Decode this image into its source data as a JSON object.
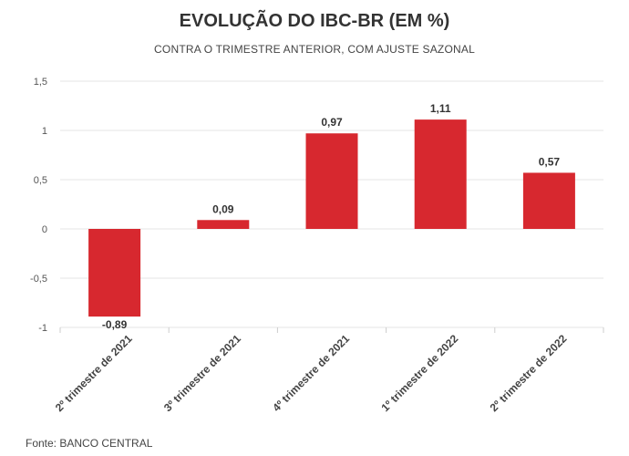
{
  "title": "EVOLUÇÃO DO IBC-BR (EM %)",
  "subtitle": "CONTRA O TRIMESTRE ANTERIOR, COM AJUSTE SAZONAL",
  "source": "Fonte: BANCO CENTRAL",
  "colors": {
    "bar": "#d7282f",
    "grid": "#e6e6e6",
    "axis": "#cccccc"
  },
  "chart_data": {
    "type": "bar",
    "categories": [
      "2º trimestre de 2021",
      "3º trimestre de 2021",
      "4º trimestre de 2021",
      "1º trimestre de 2022",
      "2º trimestre de 2022"
    ],
    "values": [
      -0.89,
      0.09,
      0.97,
      1.11,
      0.57
    ],
    "data_labels": [
      "-0,89",
      "0,09",
      "0,97",
      "1,11",
      "0,57"
    ],
    "yticks": [
      1.5,
      1,
      0.5,
      0,
      -0.5,
      -1
    ],
    "ytick_labels": [
      "1,5",
      "1",
      "0,5",
      "0",
      "-0,5",
      "-1"
    ],
    "ylim": [
      -1,
      1.5
    ],
    "grid": true,
    "legend": "none"
  }
}
